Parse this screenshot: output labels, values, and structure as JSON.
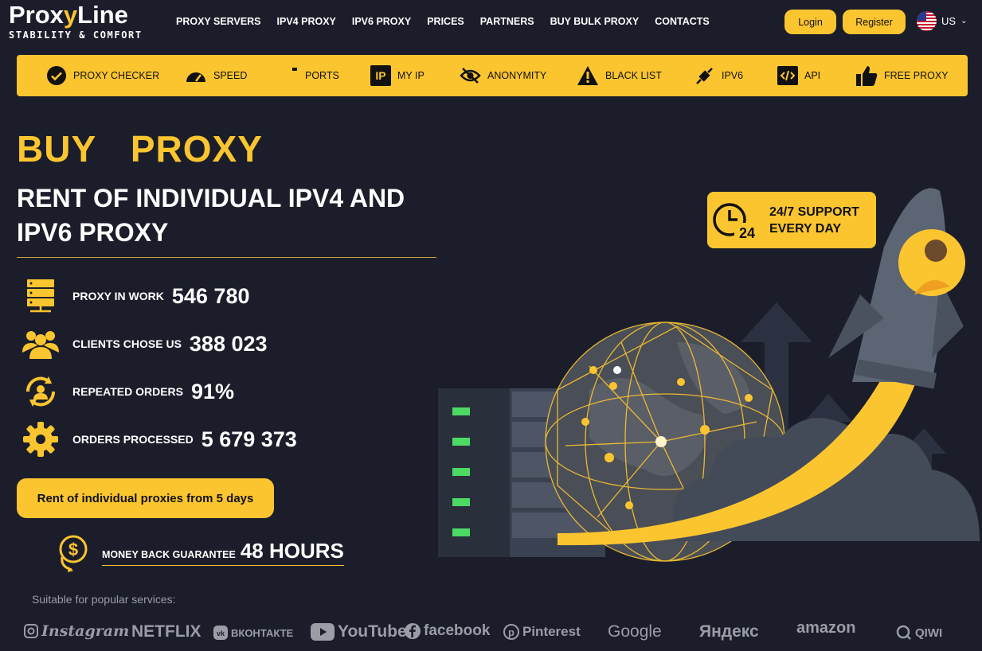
{
  "header": {
    "logo_main_a": "Prox",
    "logo_main_b": "y",
    "logo_main_c": "Line",
    "logo_sub": "STABILITY & COMFORT",
    "nav": [
      "PROXY SERVERS",
      "IPV4 PROXY",
      "IPV6 PROXY",
      "PRICES",
      "PARTNERS",
      "BUY BULK PROXY",
      "CONTACTS"
    ],
    "login_label": "Login",
    "register_label": "Register",
    "language": "US"
  },
  "toolbar": {
    "items": [
      {
        "label": "PROXY CHECKER",
        "icon": "check-circle-icon"
      },
      {
        "label": "SPEED",
        "icon": "speedometer-icon"
      },
      {
        "label": "PORTS",
        "icon": "port-icon"
      },
      {
        "label": "MY IP",
        "icon": "ip-icon"
      },
      {
        "label": "ANONYMITY",
        "icon": "eye-off-icon"
      },
      {
        "label": "BLACK LIST",
        "icon": "warning-icon"
      },
      {
        "label": "IPV6",
        "icon": "plug-icon"
      },
      {
        "label": "API",
        "icon": "code-icon"
      },
      {
        "label": "FREE PROXY",
        "icon": "thumbs-up-icon"
      }
    ],
    "ip_glyph": "IP"
  },
  "hero": {
    "title": "BUY  PROXY",
    "subtitle": "RENT OF INDIVIDUAL IPV4 AND IPV6 PROXY",
    "stats": [
      {
        "label": "PROXY IN WORK",
        "value": "546 780"
      },
      {
        "label": "CLIENTS CHOSE US",
        "value": "388 023"
      },
      {
        "label": "REPEATED ORDERS",
        "value": "91%"
      },
      {
        "label": "ORDERS PROCESSED",
        "value": "5 679 373"
      }
    ],
    "cta_label": "Rent of individual proxies from 5 days",
    "guarantee_label": "MONEY BACK GUARANTEE",
    "guarantee_value": "48 HOURS",
    "suitable": "Suitable for popular services:"
  },
  "support": {
    "line1": "24/7 SUPPORT",
    "line2": "EVERY DAY",
    "clock_num": "24"
  },
  "brands": [
    "Instagram",
    "NETFLIX",
    "ВКОНТАКТЕ",
    "YouTube",
    "facebook",
    "Pinterest",
    "Google",
    "Яндекс",
    "amazon",
    "QIWI"
  ],
  "colors": {
    "accent": "#fbc530",
    "background": "#1b1e2a",
    "muted": "#9a9ca6"
  }
}
